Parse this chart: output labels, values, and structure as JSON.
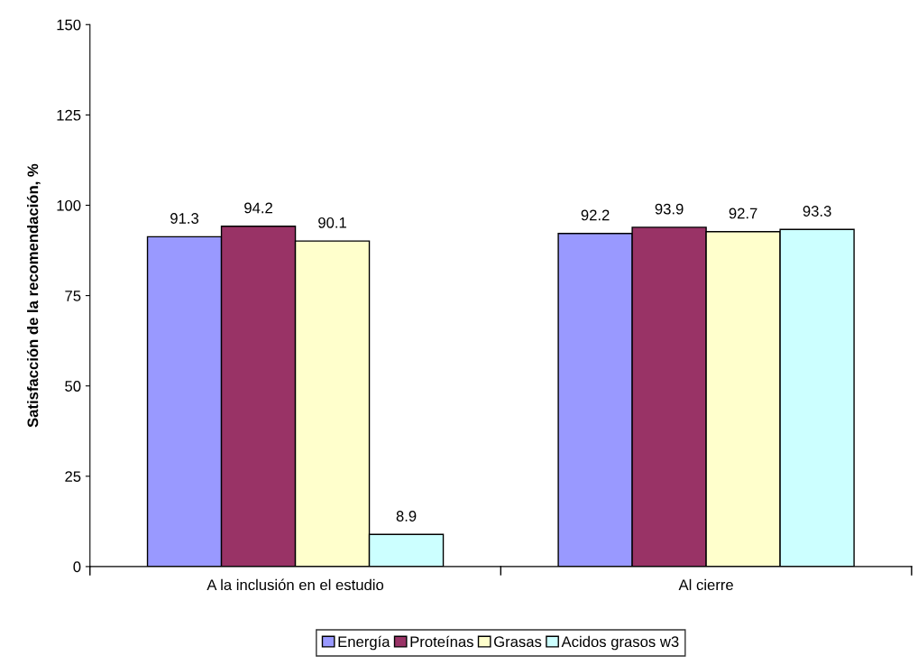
{
  "chart_data": {
    "type": "bar",
    "ylabel": "Satisfacción de la recomendación, %",
    "categories": [
      "A la inclusión en el estudio",
      "Al cierre"
    ],
    "series": [
      {
        "name": "Energía",
        "color": "#9999ff",
        "values": [
          91.3,
          92.2
        ]
      },
      {
        "name": "Proteínas",
        "color": "#993366",
        "values": [
          94.2,
          93.9
        ]
      },
      {
        "name": "Grasas",
        "color": "#ffffcc",
        "values": [
          90.1,
          92.7
        ]
      },
      {
        "name": "Acidos grasos w3",
        "color": "#ccffff",
        "values": [
          8.9,
          93.3
        ]
      }
    ],
    "ylim": [
      0,
      150
    ],
    "yticks": [
      0,
      25,
      50,
      75,
      100,
      125,
      150
    ],
    "data_labels": true,
    "grid": false,
    "legend": "bottom"
  }
}
